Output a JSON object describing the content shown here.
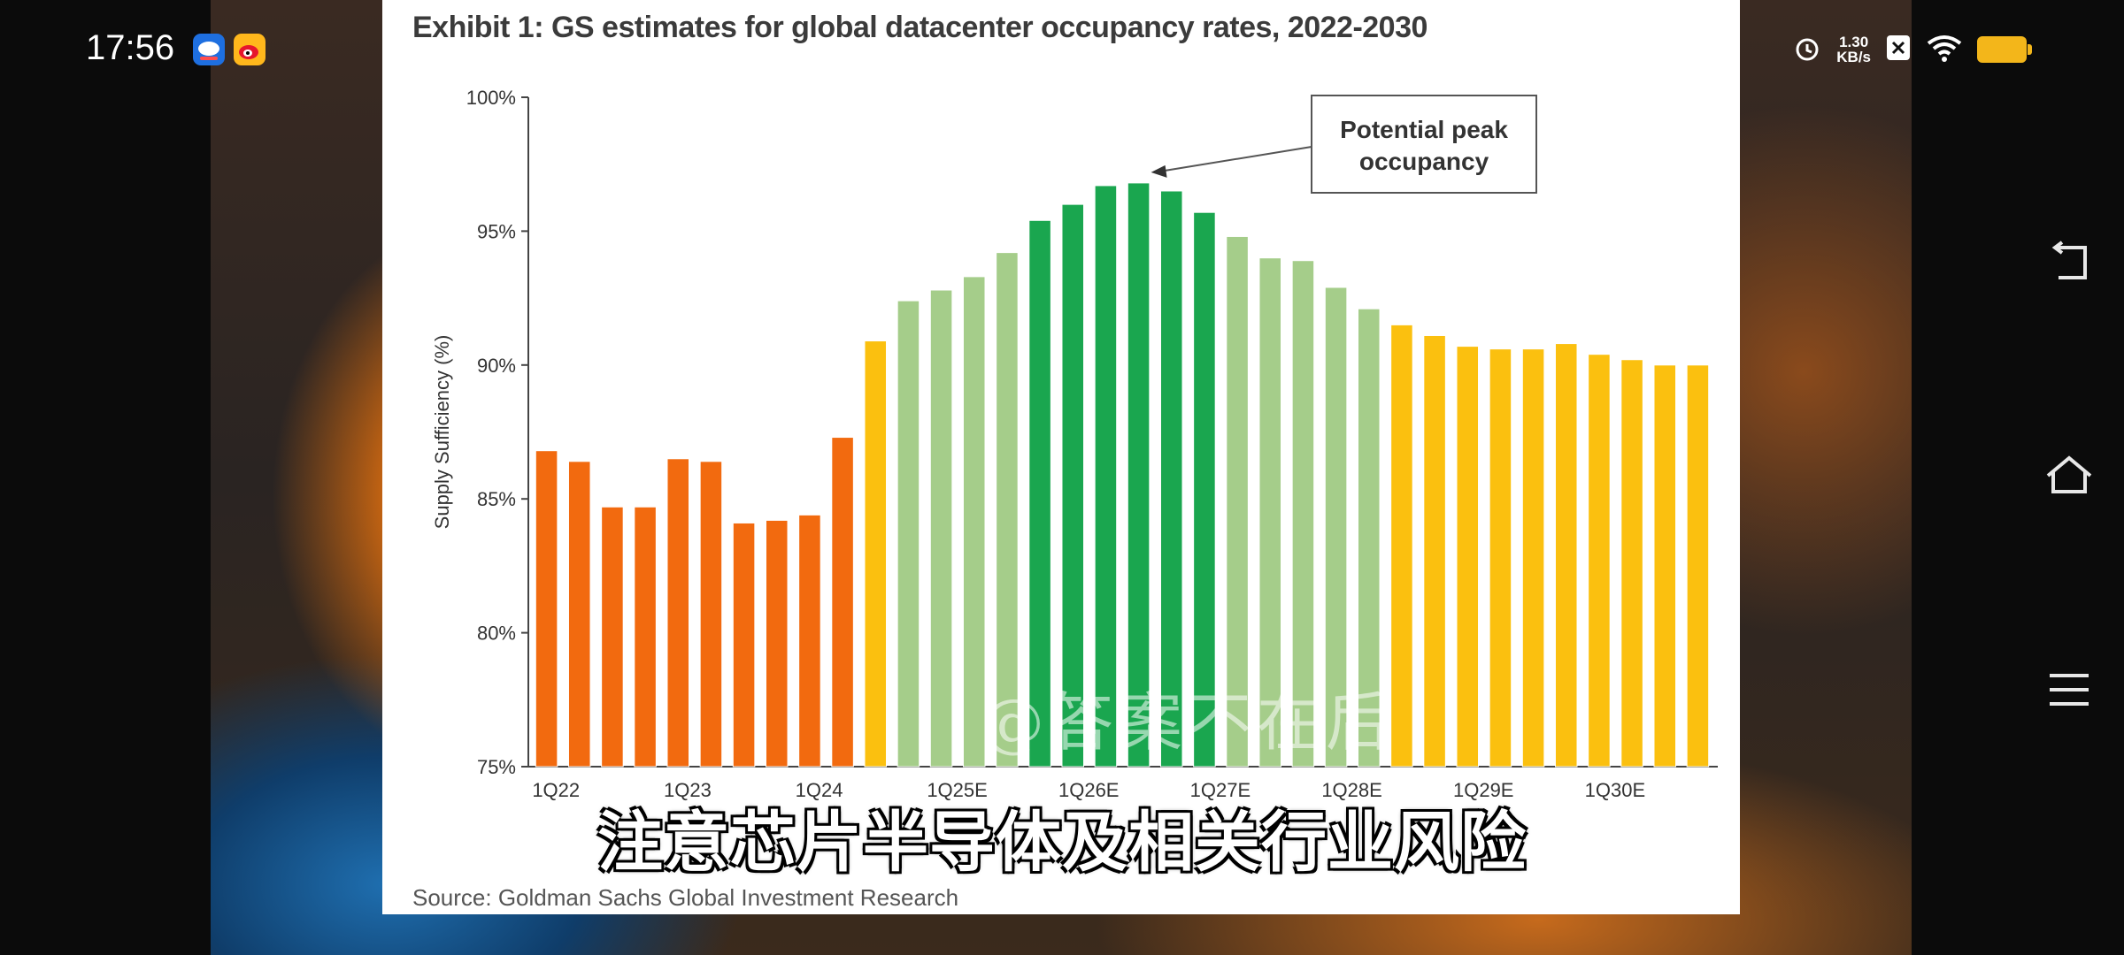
{
  "status_bar": {
    "time": "17:56",
    "net_speed_value": "1.30",
    "net_speed_unit": "KB/s",
    "icons": [
      "app-icon-blue",
      "weibo-icon",
      "alarm-icon",
      "close-box-icon",
      "wifi-icon",
      "battery-icon"
    ],
    "battery_color": "#f3b61a"
  },
  "video": {
    "subtitle": "注意芯片半导体及相关行业风险",
    "watermark": "@答案不在后"
  },
  "slide": {
    "title": "Exhibit 1: GS estimates for global datacenter occupancy rates, 2022-2030",
    "source": "Source: Goldman Sachs Global Investment Research"
  },
  "nav": {
    "icons": [
      "back-icon",
      "home-icon",
      "menu-icon"
    ]
  },
  "chart_data": {
    "type": "bar",
    "title": "Exhibit 1: GS estimates for global datacenter occupancy rates, 2022-2030",
    "xlabel": "",
    "ylabel": "Supply Sufficiency (%)",
    "ylim": [
      75,
      100
    ],
    "yticks": [
      "75%",
      "80%",
      "85%",
      "90%",
      "95%",
      "100%"
    ],
    "xtick_labels": [
      {
        "index": 0,
        "label": "1Q22"
      },
      {
        "index": 4,
        "label": "1Q23"
      },
      {
        "index": 8,
        "label": "1Q24"
      },
      {
        "index": 12,
        "label": "1Q25E"
      },
      {
        "index": 16,
        "label": "1Q26E"
      },
      {
        "index": 20,
        "label": "1Q27E"
      },
      {
        "index": 24,
        "label": "1Q28E"
      },
      {
        "index": 28,
        "label": "1Q29E"
      },
      {
        "index": 32,
        "label": "1Q30E"
      }
    ],
    "values": [
      86.8,
      86.4,
      84.7,
      84.7,
      86.5,
      86.4,
      84.1,
      84.2,
      84.4,
      87.3,
      90.9,
      92.4,
      92.8,
      93.3,
      94.2,
      95.4,
      96.0,
      96.7,
      96.8,
      96.5,
      95.7,
      94.8,
      94.0,
      93.9,
      92.9,
      92.1,
      91.5,
      91.1,
      90.7,
      90.6,
      90.6,
      90.8,
      90.4,
      90.2,
      90.0,
      90.0
    ],
    "bar_colors": [
      "#f26a0f",
      "#f26a0f",
      "#f26a0f",
      "#f26a0f",
      "#f26a0f",
      "#f26a0f",
      "#f26a0f",
      "#f26a0f",
      "#f26a0f",
      "#f26a0f",
      "#fbc00f",
      "#a5cd8a",
      "#a5cd8a",
      "#a5cd8a",
      "#a5cd8a",
      "#1aa64f",
      "#1aa64f",
      "#1aa64f",
      "#1aa64f",
      "#1aa64f",
      "#1aa64f",
      "#a5cd8a",
      "#a5cd8a",
      "#a5cd8a",
      "#a5cd8a",
      "#a5cd8a",
      "#fbc00f",
      "#fbc00f",
      "#fbc00f",
      "#fbc00f",
      "#fbc00f",
      "#fbc00f",
      "#fbc00f",
      "#fbc00f",
      "#fbc00f",
      "#fbc00f"
    ],
    "annotation": {
      "text_line1": "Potential peak",
      "text_line2": "occupancy",
      "points_to_index": 18
    },
    "grid": false,
    "legend": "none"
  }
}
